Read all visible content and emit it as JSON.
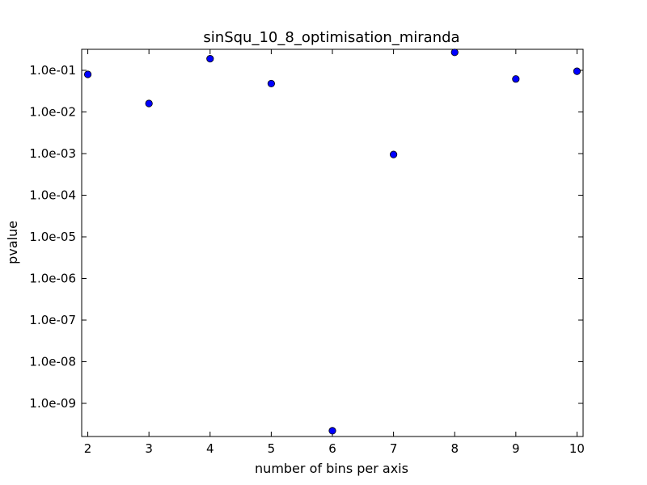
{
  "chart_data": {
    "type": "scatter",
    "title": "sinSqu_10_8_optimisation_miranda",
    "xlabel": "number of bins per axis",
    "ylabel": "pvalue",
    "xlim": [
      1.9,
      10.1
    ],
    "ylim": [
      1.6e-10,
      0.32
    ],
    "yscale": "log",
    "grid": false,
    "x_ticks": [
      2,
      3,
      4,
      5,
      6,
      7,
      8,
      9,
      10
    ],
    "y_ticks": [
      1e-09,
      1e-08,
      1e-07,
      1e-06,
      1e-05,
      0.0001,
      0.001,
      0.01,
      0.1
    ],
    "y_tick_labels": [
      "1.0e-09",
      "1.0e-08",
      "1.0e-07",
      "1.0e-06",
      "1.0e-05",
      "1.0e-04",
      "1.0e-03",
      "1.0e-02",
      "1.0e-01"
    ],
    "series": [
      {
        "color": "#0000ff",
        "marker": "circle",
        "points": [
          {
            "x": 2,
            "y": 0.08
          },
          {
            "x": 3,
            "y": 0.016
          },
          {
            "x": 4,
            "y": 0.19
          },
          {
            "x": 5,
            "y": 0.048
          },
          {
            "x": 6,
            "y": 2.2e-10
          },
          {
            "x": 7,
            "y": 0.00095
          },
          {
            "x": 8,
            "y": 0.27
          },
          {
            "x": 9,
            "y": 0.062
          },
          {
            "x": 10,
            "y": 0.095
          }
        ]
      }
    ]
  }
}
